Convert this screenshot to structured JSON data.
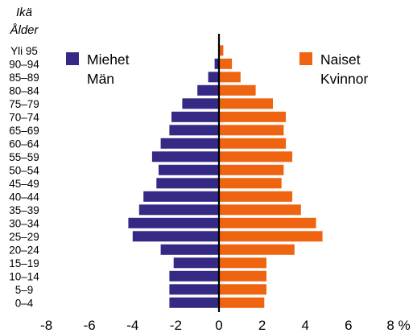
{
  "header": {
    "age_fi": "Ikä",
    "age_sv": "Ålder"
  },
  "legend": {
    "male_fi": "Miehet",
    "male_sv": "Män",
    "female_fi": "Naiset",
    "female_sv": "Kvinnor"
  },
  "colors": {
    "male": "#342a85",
    "female": "#ee6410"
  },
  "chart_data": {
    "type": "bar",
    "orientation": "horizontal-population-pyramid",
    "categories": [
      "0–4",
      "5–9",
      "10–14",
      "15–19",
      "20–24",
      "25–29",
      "30–34",
      "35–39",
      "40–44",
      "45–49",
      "50–54",
      "55–59",
      "60–64",
      "65–69",
      "70–74",
      "75–79",
      "80–84",
      "85–89",
      "90–94",
      "Yli 95"
    ],
    "series": [
      {
        "name": "Miehet / Män",
        "side": "left",
        "values": [
          2.3,
          2.3,
          2.3,
          2.1,
          2.7,
          4.0,
          4.2,
          3.7,
          3.5,
          2.9,
          2.8,
          3.1,
          2.7,
          2.3,
          2.2,
          1.7,
          1.0,
          0.5,
          0.2,
          0.0
        ]
      },
      {
        "name": "Naiset / Kvinnor",
        "side": "right",
        "values": [
          2.1,
          2.2,
          2.2,
          2.2,
          3.5,
          4.8,
          4.5,
          3.8,
          3.4,
          2.9,
          3.0,
          3.4,
          3.1,
          3.0,
          3.1,
          2.5,
          1.7,
          1.0,
          0.6,
          0.2
        ]
      }
    ],
    "xticks": [
      "-8",
      "-6",
      "-4",
      "-2",
      "0",
      "2",
      "4",
      "6",
      "8 %"
    ],
    "xlim": [
      -8,
      8
    ],
    "legend_position": "top (split left/right)"
  }
}
